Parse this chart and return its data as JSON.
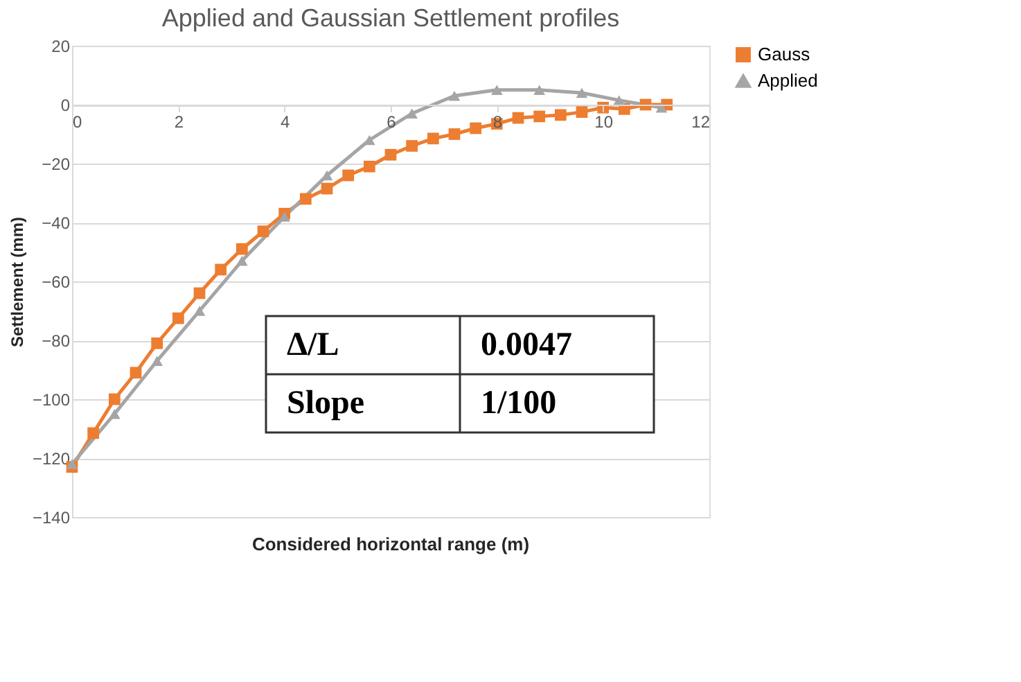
{
  "chart_data": {
    "type": "line",
    "title": "Applied and Gaussian Settlement profiles",
    "xlabel": "Considered horizontal range (m)",
    "ylabel": "Settlement (mm)",
    "series": [
      {
        "name": "Gauss",
        "color": "#ed7d31",
        "marker": "square",
        "x": [
          0,
          0.4,
          0.8,
          1.2,
          1.6,
          2.0,
          2.4,
          2.8,
          3.2,
          3.6,
          4.0,
          4.4,
          4.8,
          5.2,
          5.6,
          6.0,
          6.4,
          6.8,
          7.2,
          7.6,
          8.0,
          8.4,
          8.8,
          9.2,
          9.6,
          10.0,
          10.4,
          10.8,
          11.2
        ],
        "values": [
          -123,
          -111.5,
          -100,
          -91,
          -81,
          -72.5,
          -64,
          -56,
          -49,
          -43,
          -37,
          -32,
          -28.5,
          -24,
          -21,
          -17,
          -14,
          -11.5,
          -10,
          -8,
          -6.5,
          -4.5,
          -4,
          -3.5,
          -2.5,
          -1,
          -1.5,
          0,
          0
        ]
      },
      {
        "name": "Applied",
        "color": "#a5a5a5",
        "marker": "triangle",
        "x": [
          0,
          0.8,
          1.6,
          2.4,
          3.2,
          4.0,
          4.8,
          5.6,
          6.4,
          7.2,
          8.0,
          8.8,
          9.6,
          10.3,
          11.1
        ],
        "values": [
          -122,
          -105,
          -87,
          -70,
          -53,
          -38,
          -24,
          -12,
          -3,
          3,
          5,
          5,
          4,
          1.5,
          -1
        ]
      }
    ],
    "xlim": [
      0,
      12
    ],
    "xticks": [
      0,
      2,
      4,
      6,
      8,
      10,
      12
    ],
    "ylim": [
      -140,
      20
    ],
    "yticks": [
      -140,
      -120,
      -100,
      -80,
      -60,
      -40,
      -20,
      0,
      20
    ],
    "grid": "y",
    "legend": "right",
    "annotations": [
      "Δ/L",
      "0.0047",
      "Slope",
      "1/100"
    ]
  }
}
